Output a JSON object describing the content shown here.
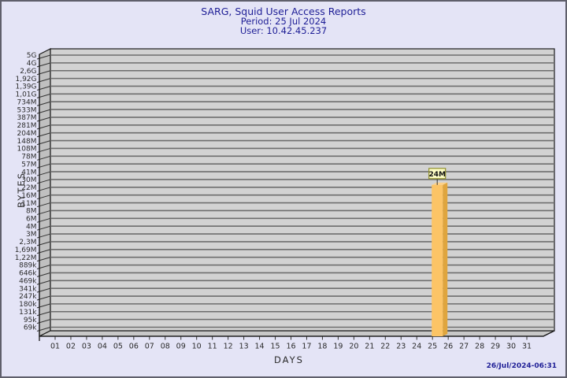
{
  "window": {
    "background_color": "#e4e4f6",
    "border_color": "#5f5f6b"
  },
  "header": {
    "title": "SARG, Squid User Access Reports",
    "period": "Period: 25 Jul 2024",
    "user": "User: 10.42.45.237",
    "text_color": "#1e1e96"
  },
  "footer": {
    "generated_at": "26/Jul/2024-06:31"
  },
  "chart_data": {
    "type": "bar",
    "title": "SARG, Squid User Access Reports",
    "subtitle": [
      "Period: 25 Jul 2024",
      "User: 10.42.45.237"
    ],
    "xlabel": "DAYS",
    "ylabel": "BYTES",
    "x_categories": [
      "01",
      "02",
      "03",
      "04",
      "05",
      "06",
      "07",
      "08",
      "09",
      "10",
      "11",
      "12",
      "13",
      "14",
      "15",
      "16",
      "17",
      "18",
      "19",
      "20",
      "21",
      "22",
      "23",
      "24",
      "25",
      "26",
      "27",
      "28",
      "29",
      "30",
      "31"
    ],
    "y_scale": "log",
    "y_domain_bytes": [
      69000,
      5000000000
    ],
    "y_tick_labels_top_to_bottom": [
      "5G",
      "4G",
      "2,6G",
      "1,92G",
      "1,39G",
      "1,01G",
      "734M",
      "533M",
      "387M",
      "281M",
      "204M",
      "148M",
      "108M",
      "78M",
      "57M",
      "41M",
      "30M",
      "22M",
      "16M",
      "11M",
      "8M",
      "6M",
      "4M",
      "3M",
      "2,3M",
      "1,69M",
      "1,22M",
      "889k",
      "646k",
      "469k",
      "341k",
      "247k",
      "180k",
      "131k",
      "95k",
      "69k"
    ],
    "bars": [
      {
        "category": "25",
        "value_bytes": 24000000,
        "label": "24M"
      }
    ],
    "grid": true,
    "legend": "none",
    "colors": {
      "plot_bg": "#d2d2d2",
      "grid": "#6e6e6e",
      "wall": "#c0c0c0",
      "floor": "#c8c8c8",
      "outline": "#1a1a1a",
      "tick_text": "#2b2b2b",
      "bar_front": "#fcc466",
      "bar_side": "#dfa53e",
      "bar_top": "#fdd189",
      "value_label_bg": "#ffffc6",
      "value_label_border": "#8f8f2a",
      "value_label_text": "#111111"
    }
  }
}
